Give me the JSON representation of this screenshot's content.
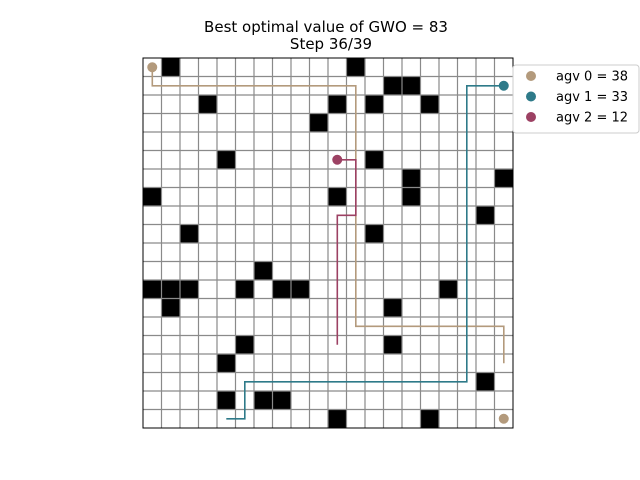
{
  "chart_data": {
    "type": "grid-path",
    "title_line1": "Best optimal value of GWO = 83",
    "title_line2": "Step 36/39",
    "grid": {
      "cols": 20,
      "rows": 20
    },
    "obstacles": [
      [
        1,
        0
      ],
      [
        11,
        0
      ],
      [
        13,
        1
      ],
      [
        14,
        1
      ],
      [
        3,
        2
      ],
      [
        10,
        2
      ],
      [
        12,
        2
      ],
      [
        15,
        2
      ],
      [
        9,
        3
      ],
      [
        4,
        5
      ],
      [
        12,
        5
      ],
      [
        14,
        6
      ],
      [
        19,
        6
      ],
      [
        0,
        7
      ],
      [
        10,
        7
      ],
      [
        14,
        7
      ],
      [
        18,
        8
      ],
      [
        2,
        9
      ],
      [
        12,
        9
      ],
      [
        6,
        11
      ],
      [
        0,
        12
      ],
      [
        1,
        12
      ],
      [
        2,
        12
      ],
      [
        5,
        12
      ],
      [
        7,
        12
      ],
      [
        8,
        12
      ],
      [
        16,
        12
      ],
      [
        1,
        13
      ],
      [
        13,
        13
      ],
      [
        5,
        15
      ],
      [
        13,
        15
      ],
      [
        4,
        16
      ],
      [
        18,
        17
      ],
      [
        4,
        18
      ],
      [
        6,
        18
      ],
      [
        7,
        18
      ],
      [
        10,
        19
      ],
      [
        15,
        19
      ]
    ],
    "agents": [
      {
        "name": "agv 0",
        "value": 38,
        "color": "#b39a7c",
        "path": [
          [
            0,
            0
          ],
          [
            0,
            1
          ],
          [
            11,
            1
          ],
          [
            11,
            14
          ],
          [
            19,
            14
          ],
          [
            19,
            16
          ]
        ],
        "end": [
          19,
          19
        ]
      },
      {
        "name": "agv 1",
        "value": 33,
        "color": "#2e7a89",
        "path": [
          [
            19,
            1
          ],
          [
            17,
            1
          ],
          [
            17,
            17
          ],
          [
            5,
            17
          ],
          [
            5,
            19
          ],
          [
            4,
            19
          ]
        ],
        "end": null
      },
      {
        "name": "agv 2",
        "value": 12,
        "color": "#9c4163",
        "path": [
          [
            10,
            5
          ],
          [
            11,
            5
          ],
          [
            11,
            8
          ],
          [
            10,
            8
          ],
          [
            10,
            15
          ]
        ],
        "end": null
      }
    ]
  }
}
